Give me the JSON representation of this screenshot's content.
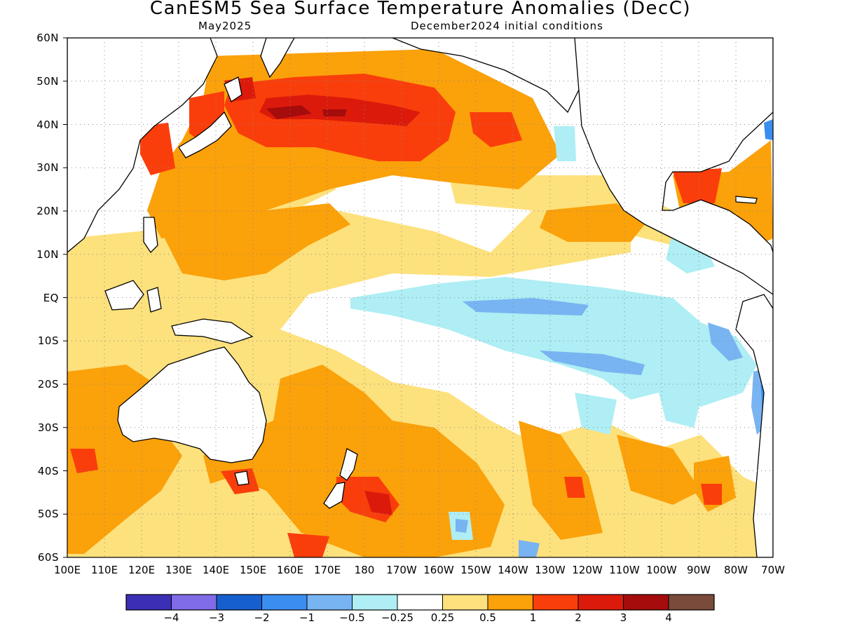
{
  "title": "CanESM5 Sea Surface Temperature Anomalies (DecC)",
  "subtitle_left": "May2025",
  "subtitle_right": "December2024 initial conditions",
  "map": {
    "lat_labels": [
      "60N",
      "50N",
      "40N",
      "30N",
      "20N",
      "10N",
      "EQ",
      "10S",
      "20S",
      "30S",
      "40S",
      "50S",
      "60S"
    ],
    "lon_labels": [
      "100E",
      "110E",
      "120E",
      "130E",
      "140E",
      "150E",
      "160E",
      "170E",
      "180",
      "170W",
      "160W",
      "150W",
      "140W",
      "130W",
      "120W",
      "110W",
      "100W",
      "90W",
      "80W",
      "70W"
    ],
    "lat_range": [
      -60,
      60
    ],
    "lon_range": [
      100,
      290
    ],
    "grid": "dotted"
  },
  "colorbar": {
    "colors": [
      "#3b2fb5",
      "#7f6ce6",
      "#165fcf",
      "#3a8ef0",
      "#78b4f2",
      "#aeeef4",
      "#ffffff",
      "#fde17c",
      "#fba10a",
      "#fa3e0b",
      "#dc1a0b",
      "#a50c0c",
      "#7a4a3a"
    ],
    "labels": [
      "−4",
      "−3",
      "−2",
      "−1",
      "−0.5",
      "−0.25",
      "0.25",
      "0.5",
      "1",
      "2",
      "3",
      "4"
    ]
  },
  "colors": {
    "land": "#ffffff",
    "coast": "#000000",
    "grid": "#888888"
  }
}
